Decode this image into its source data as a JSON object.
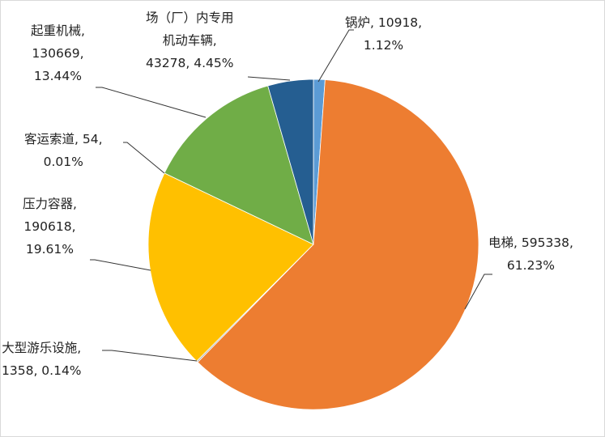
{
  "chart_data": {
    "type": "pie",
    "title": "",
    "start_angle": 0,
    "direction": "clockwise",
    "legend": "none",
    "categories": [
      "锅炉",
      "电梯",
      "大型游乐设施",
      "压力容器",
      "客运索道",
      "起重机械",
      "场（厂）内专用机动车辆"
    ],
    "values": [
      10918,
      595338,
      1358,
      190618,
      54,
      130669,
      43278
    ],
    "percents": [
      1.12,
      61.23,
      0.14,
      19.61,
      0.01,
      13.44,
      4.45
    ],
    "colors": [
      "#5B9BD5",
      "#ED7D31",
      "#A5A5A5",
      "#FFC000",
      "#4472C4",
      "#70AD47",
      "#255E91"
    ]
  },
  "labels": {
    "boiler": {
      "line1": "锅炉, 10918,",
      "line2": "1.12%"
    },
    "elevator": {
      "line1": "电梯, 595338,",
      "line2": "61.23%"
    },
    "amusement": {
      "line1": "大型游乐设施,",
      "line2": "1358, 0.14%"
    },
    "pressure": {
      "line1": "压力容器,",
      "line2": "190618,",
      "line3": "19.61%"
    },
    "ropeway": {
      "line1": "客运索道, 54,",
      "line2": "0.01%"
    },
    "crane": {
      "line1": "起重机械,",
      "line2": "130669,",
      "line3": "13.44%"
    },
    "vehicle": {
      "line1": "场（厂）内专用",
      "line2": "机动车辆,",
      "line3": "43278, 4.45%"
    }
  }
}
